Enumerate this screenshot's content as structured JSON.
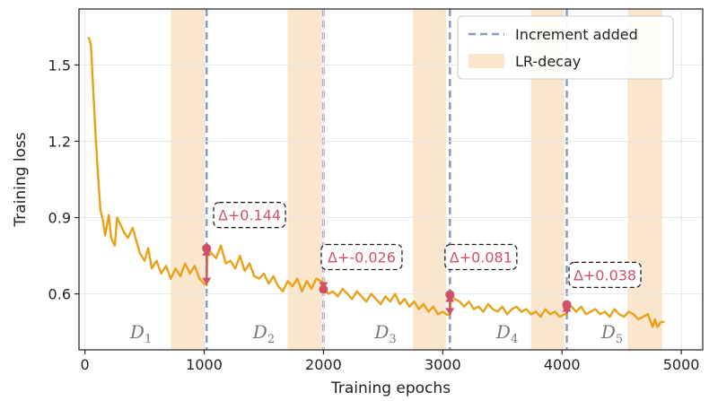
{
  "chart_data": {
    "type": "line",
    "xlabel": "Training epochs",
    "ylabel": "Training loss",
    "xlim": [
      -50,
      5180
    ],
    "ylim": [
      0.38,
      1.72
    ],
    "xticks": [
      0,
      1000,
      2000,
      3000,
      4000,
      5000
    ],
    "yticks": [
      0.6,
      0.9,
      1.2,
      1.5
    ],
    "xtick_labels": [
      "0",
      "1000",
      "2000",
      "3000",
      "4000",
      "5000"
    ],
    "ytick_labels": [
      "0.6",
      "0.9",
      "1.2",
      "1.5"
    ],
    "grid": true,
    "legend_position": "top-right",
    "legend": [
      {
        "label": "Increment added",
        "style": "dashed-line",
        "color": "#8a9ab5"
      },
      {
        "label": "LR-decay",
        "style": "patch",
        "color": "#f9e6cc"
      }
    ],
    "increments": [
      1020,
      2000,
      3060,
      4040
    ],
    "lr_decay_spans": [
      [
        720,
        1000
      ],
      [
        1700,
        1990
      ],
      [
        2750,
        3030
      ],
      [
        3740,
        4020
      ],
      [
        4550,
        4840
      ]
    ],
    "dataset_labels": [
      {
        "base": "D",
        "sub": "1",
        "x": 470,
        "y": 0.45
      },
      {
        "base": "D",
        "sub": "2",
        "x": 1500,
        "y": 0.45
      },
      {
        "base": "D",
        "sub": "3",
        "x": 2520,
        "y": 0.45
      },
      {
        "base": "D",
        "sub": "4",
        "x": 3540,
        "y": 0.45
      },
      {
        "base": "D",
        "sub": "5",
        "x": 4420,
        "y": 0.45
      }
    ],
    "deltas": [
      {
        "x": 1020,
        "before": 0.635,
        "after": 0.779,
        "label": "Δ+0.144",
        "label_x": 1380,
        "label_y": 0.91
      },
      {
        "x": 2000,
        "before": 0.644,
        "after": 0.618,
        "label": "Δ+-0.026",
        "label_x": 2320,
        "label_y": 0.745
      },
      {
        "x": 3060,
        "before": 0.516,
        "after": 0.597,
        "label": "Δ+0.081",
        "label_x": 3320,
        "label_y": 0.745
      },
      {
        "x": 4040,
        "before": 0.52,
        "after": 0.558,
        "label": "Δ+0.038",
        "label_x": 4360,
        "label_y": 0.675
      }
    ],
    "series": [
      {
        "color": "#e8a21a",
        "x": [
          30,
          50,
          70,
          90,
          110,
          130,
          150,
          170,
          200,
          220,
          250,
          270,
          300,
          330,
          360,
          400,
          430,
          460,
          500,
          530,
          560,
          600,
          640,
          680,
          720,
          760,
          800,
          840,
          880,
          920,
          960,
          1000,
          1020,
          1030,
          1060,
          1100,
          1140,
          1180,
          1220,
          1260,
          1300,
          1340,
          1380,
          1420,
          1460,
          1500,
          1540,
          1580,
          1620,
          1660,
          1700,
          1740,
          1780,
          1820,
          1860,
          1900,
          1940,
          1980,
          2000,
          2010,
          2040,
          2080,
          2120,
          2160,
          2200,
          2240,
          2280,
          2320,
          2360,
          2400,
          2440,
          2480,
          2520,
          2560,
          2600,
          2640,
          2680,
          2720,
          2760,
          2800,
          2840,
          2880,
          2920,
          2960,
          3000,
          3030,
          3060,
          3070,
          3100,
          3140,
          3180,
          3220,
          3260,
          3300,
          3340,
          3380,
          3420,
          3460,
          3500,
          3540,
          3580,
          3620,
          3660,
          3700,
          3740,
          3780,
          3820,
          3860,
          3900,
          3940,
          3980,
          4020,
          4040,
          4050,
          4080,
          4120,
          4160,
          4200,
          4240,
          4280,
          4320,
          4360,
          4400,
          4440,
          4480,
          4520,
          4560,
          4600,
          4640,
          4680,
          4720,
          4760,
          4780,
          4800,
          4830,
          4860
        ],
        "y": [
          1.61,
          1.58,
          1.4,
          1.22,
          1.06,
          0.93,
          0.89,
          0.83,
          0.91,
          0.82,
          0.79,
          0.9,
          0.87,
          0.84,
          0.82,
          0.86,
          0.81,
          0.76,
          0.73,
          0.78,
          0.7,
          0.73,
          0.68,
          0.71,
          0.66,
          0.7,
          0.67,
          0.72,
          0.68,
          0.71,
          0.66,
          0.64,
          0.635,
          0.779,
          0.76,
          0.74,
          0.79,
          0.72,
          0.73,
          0.7,
          0.75,
          0.69,
          0.72,
          0.67,
          0.66,
          0.68,
          0.64,
          0.67,
          0.63,
          0.61,
          0.65,
          0.63,
          0.66,
          0.61,
          0.65,
          0.62,
          0.66,
          0.65,
          0.644,
          0.618,
          0.6,
          0.61,
          0.59,
          0.62,
          0.6,
          0.58,
          0.61,
          0.59,
          0.57,
          0.6,
          0.58,
          0.56,
          0.59,
          0.57,
          0.6,
          0.56,
          0.58,
          0.55,
          0.57,
          0.54,
          0.56,
          0.53,
          0.55,
          0.52,
          0.53,
          0.52,
          0.516,
          0.597,
          0.58,
          0.57,
          0.55,
          0.57,
          0.54,
          0.55,
          0.53,
          0.56,
          0.54,
          0.53,
          0.55,
          0.52,
          0.54,
          0.55,
          0.53,
          0.54,
          0.52,
          0.53,
          0.51,
          0.54,
          0.52,
          0.53,
          0.51,
          0.52,
          0.52,
          0.558,
          0.55,
          0.53,
          0.55,
          0.52,
          0.53,
          0.54,
          0.52,
          0.53,
          0.51,
          0.54,
          0.52,
          0.51,
          0.53,
          0.52,
          0.5,
          0.51,
          0.52,
          0.47,
          0.5,
          0.47,
          0.49,
          0.49
        ]
      }
    ]
  }
}
